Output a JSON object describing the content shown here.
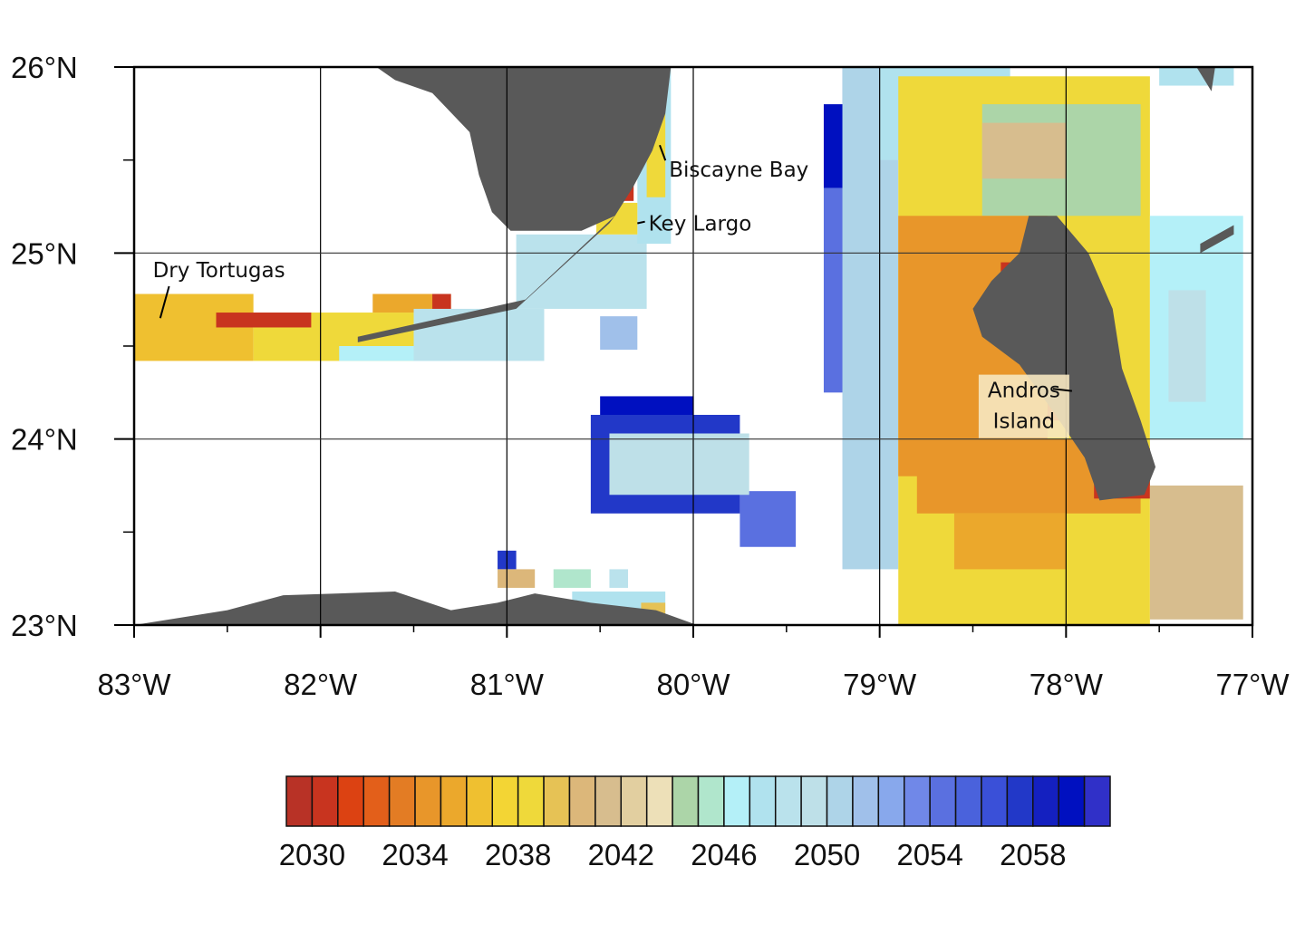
{
  "chart_data": {
    "type": "heatmap",
    "xlim": [
      -83,
      -77
    ],
    "ylim": [
      23,
      26
    ],
    "grid": true,
    "land_color": "#595959",
    "x_ticks": [
      {
        "v": -83,
        "label": "83°W"
      },
      {
        "v": -82,
        "label": "82°W"
      },
      {
        "v": -81,
        "label": "81°W"
      },
      {
        "v": -80,
        "label": "80°W"
      },
      {
        "v": -79,
        "label": "79°W"
      },
      {
        "v": -78,
        "label": "78°W"
      },
      {
        "v": -77,
        "label": "77°W"
      }
    ],
    "y_ticks": [
      {
        "v": 26,
        "label": "26°N"
      },
      {
        "v": 25,
        "label": "25°N"
      },
      {
        "v": 24,
        "label": "24°N"
      },
      {
        "v": 23,
        "label": "23°N"
      }
    ],
    "annotations": [
      {
        "text": "Dry Tortugas",
        "lon": -82.9,
        "lat": 24.87,
        "point": [
          -82.86,
          24.65
        ]
      },
      {
        "text": "Biscayne Bay",
        "lon": -80.13,
        "lat": 25.41,
        "point": [
          -80.18,
          25.58
        ]
      },
      {
        "text": "Key Largo",
        "lon": -80.24,
        "lat": 25.12,
        "point": [
          -80.3,
          25.16
        ]
      },
      {
        "text": "Andros Island",
        "lines": [
          "Andros",
          "Island"
        ],
        "lon": -78.43,
        "lat": 24.2,
        "point": [
          -78.07,
          24.27
        ]
      }
    ],
    "colorbar": {
      "start": 2029,
      "tick_labels": [
        "2030",
        "2034",
        "2038",
        "2042",
        "2046",
        "2050",
        "2054",
        "2058"
      ],
      "tick_values": [
        2030,
        2034,
        2038,
        2042,
        2046,
        2050,
        2054,
        2058
      ],
      "colors": [
        "#b83226",
        "#c8341f",
        "#dc4212",
        "#e35f1a",
        "#e37c24",
        "#e8962a",
        "#eba82c",
        "#efc030",
        "#f3d534",
        "#efd93a",
        "#e6c255",
        "#dcb77a",
        "#d7bd8e",
        "#e2cfa0",
        "#ede0b8",
        "#acd5a8",
        "#b0e6cc",
        "#b4f0f8",
        "#b0e2ee",
        "#bae2ec",
        "#bee0e8",
        "#aed4e8",
        "#a0c0ea",
        "#88a8ec",
        "#7088e8",
        "#5a70e0",
        "#4a62dc",
        "#3a50d8",
        "#2238c8",
        "#1420c0",
        "#0010c0",
        "#3030c8"
      ]
    },
    "patches": [
      {
        "lon": [
          -83.0,
          -82.36
        ],
        "lat": [
          24.42,
          24.78
        ],
        "year": 2036
      },
      {
        "lon": [
          -82.36,
          -81.5
        ],
        "lat": [
          24.42,
          24.68
        ],
        "year": 2038
      },
      {
        "lon": [
          -82.56,
          -82.05
        ],
        "lat": [
          24.6,
          24.68
        ],
        "year": 2030
      },
      {
        "lon": [
          -81.72,
          -81.3
        ],
        "lat": [
          24.68,
          24.78
        ],
        "year": 2035
      },
      {
        "lon": [
          -81.4,
          -81.3
        ],
        "lat": [
          24.68,
          24.78
        ],
        "year": 2030
      },
      {
        "lon": [
          -81.9,
          -81.3
        ],
        "lat": [
          24.42,
          24.5
        ],
        "year": 2046
      },
      {
        "lon": [
          -81.5,
          -80.8
        ],
        "lat": [
          24.42,
          24.7
        ],
        "year": 2048
      },
      {
        "lon": [
          -80.95,
          -80.25
        ],
        "lat": [
          24.7,
          25.1
        ],
        "year": 2048
      },
      {
        "lon": [
          -80.5,
          -80.3
        ],
        "lat": [
          24.48,
          24.66
        ],
        "year": 2051
      },
      {
        "lon": [
          -80.3,
          -80.12
        ],
        "lat": [
          25.05,
          26.0
        ],
        "year": 2047
      },
      {
        "lon": [
          -80.25,
          -80.15
        ],
        "lat": [
          25.3,
          25.75
        ],
        "year": 2038
      },
      {
        "lon": [
          -80.4,
          -80.32
        ],
        "lat": [
          25.28,
          25.38
        ],
        "year": 2030
      },
      {
        "lon": [
          -80.52,
          -80.3
        ],
        "lat": [
          25.1,
          25.27
        ],
        "year": 2038
      },
      {
        "lon": [
          -80.5,
          -80.0
        ],
        "lat": [
          24.12,
          24.23
        ],
        "year": 2059
      },
      {
        "lon": [
          -80.55,
          -79.75
        ],
        "lat": [
          23.6,
          24.13
        ],
        "year": 2057
      },
      {
        "lon": [
          -79.75,
          -79.45
        ],
        "lat": [
          23.42,
          23.72
        ],
        "year": 2054
      },
      {
        "lon": [
          -80.45,
          -79.7
        ],
        "lat": [
          23.7,
          24.03
        ],
        "year": 2049
      },
      {
        "lon": [
          -81.05,
          -80.95
        ],
        "lat": [
          23.3,
          23.4
        ],
        "year": 2057
      },
      {
        "lon": [
          -81.05,
          -80.85
        ],
        "lat": [
          23.2,
          23.3
        ],
        "year": 2040
      },
      {
        "lon": [
          -80.75,
          -80.55
        ],
        "lat": [
          23.2,
          23.3
        ],
        "year": 2045
      },
      {
        "lon": [
          -80.45,
          -80.35
        ],
        "lat": [
          23.2,
          23.3
        ],
        "year": 2048
      },
      {
        "lon": [
          -80.65,
          -80.15
        ],
        "lat": [
          23.05,
          23.18
        ],
        "year": 2047
      },
      {
        "lon": [
          -80.28,
          -80.15
        ],
        "lat": [
          23.0,
          23.12
        ],
        "year": 2039
      },
      {
        "lon": [
          -79.3,
          -79.2
        ],
        "lat": [
          25.35,
          25.8
        ],
        "year": 2059
      },
      {
        "lon": [
          -79.2,
          -79.1
        ],
        "lat": [
          25.1,
          26.0
        ],
        "year": 2059
      },
      {
        "lon": [
          -79.3,
          -79.1
        ],
        "lat": [
          24.25,
          25.35
        ],
        "year": 2054
      },
      {
        "lon": [
          -79.2,
          -78.9
        ],
        "lat": [
          23.3,
          26.0
        ],
        "year": 2050
      },
      {
        "lon": [
          -79.0,
          -78.3
        ],
        "lat": [
          25.5,
          26.0
        ],
        "year": 2047
      },
      {
        "lon": [
          -78.9,
          -77.55
        ],
        "lat": [
          23.0,
          25.95
        ],
        "year": 2038
      },
      {
        "lon": [
          -78.45,
          -77.6
        ],
        "lat": [
          25.2,
          25.8
        ],
        "year": 2044
      },
      {
        "lon": [
          -78.9,
          -78.1
        ],
        "lat": [
          23.8,
          25.2
        ],
        "year": 2034
      },
      {
        "lon": [
          -78.8,
          -77.6
        ],
        "lat": [
          23.6,
          24.0
        ],
        "year": 2034
      },
      {
        "lon": [
          -78.6,
          -78.0
        ],
        "lat": [
          23.3,
          23.6
        ],
        "year": 2035
      },
      {
        "lon": [
          -78.35,
          -78.05
        ],
        "lat": [
          24.5,
          24.95
        ],
        "year": 2030
      },
      {
        "lon": [
          -78.1,
          -77.75
        ],
        "lat": [
          24.1,
          24.4
        ],
        "year": 2030
      },
      {
        "lon": [
          -77.85,
          -77.55
        ],
        "lat": [
          23.68,
          23.95
        ],
        "year": 2030
      },
      {
        "lon": [
          -77.55,
          -77.05
        ],
        "lat": [
          23.03,
          23.75
        ],
        "year": 2041
      },
      {
        "lon": [
          -77.55,
          -77.05
        ],
        "lat": [
          24.0,
          25.2
        ],
        "year": 2046
      },
      {
        "lon": [
          -77.45,
          -77.25
        ],
        "lat": [
          24.2,
          24.8
        ],
        "year": 2049
      },
      {
        "lon": [
          -77.5,
          -77.1
        ],
        "lat": [
          25.9,
          26.0
        ],
        "year": 2047
      },
      {
        "lon": [
          -78.45,
          -78.0
        ],
        "lat": [
          25.4,
          25.7
        ],
        "year": 2041
      }
    ],
    "land": [
      {
        "name": "florida",
        "pts": [
          [
            -81.7,
            26
          ],
          [
            -80.12,
            26
          ],
          [
            -80.15,
            25.75
          ],
          [
            -80.22,
            25.55
          ],
          [
            -80.32,
            25.36
          ],
          [
            -80.42,
            25.2
          ],
          [
            -80.6,
            25.12
          ],
          [
            -80.98,
            25.12
          ],
          [
            -81.08,
            25.22
          ],
          [
            -81.15,
            25.42
          ],
          [
            -81.2,
            25.65
          ],
          [
            -81.4,
            25.86
          ],
          [
            -81.6,
            25.93
          ]
        ]
      },
      {
        "name": "florida-keys",
        "pts": [
          [
            -80.42,
            25.2
          ],
          [
            -80.9,
            24.75
          ],
          [
            -81.8,
            24.55
          ],
          [
            -81.8,
            24.52
          ],
          [
            -80.95,
            24.7
          ],
          [
            -80.45,
            25.16
          ]
        ]
      },
      {
        "name": "andros-island",
        "pts": [
          [
            -78.2,
            25.2
          ],
          [
            -78.05,
            25.2
          ],
          [
            -77.88,
            25.0
          ],
          [
            -77.75,
            24.7
          ],
          [
            -77.7,
            24.38
          ],
          [
            -77.6,
            24.1
          ],
          [
            -77.52,
            23.85
          ],
          [
            -77.58,
            23.7
          ],
          [
            -77.82,
            23.67
          ],
          [
            -77.9,
            23.9
          ],
          [
            -78.07,
            24.15
          ],
          [
            -78.25,
            24.4
          ],
          [
            -78.45,
            24.55
          ],
          [
            -78.5,
            24.7
          ],
          [
            -78.4,
            24.85
          ],
          [
            -78.25,
            25.0
          ]
        ]
      },
      {
        "name": "cuba",
        "pts": [
          [
            -83.0,
            23.0
          ],
          [
            -82.5,
            23.08
          ],
          [
            -82.2,
            23.16
          ],
          [
            -81.6,
            23.18
          ],
          [
            -81.3,
            23.08
          ],
          [
            -81.05,
            23.12
          ],
          [
            -80.85,
            23.17
          ],
          [
            -80.55,
            23.12
          ],
          [
            -80.2,
            23.08
          ],
          [
            -79.98,
            23.0
          ]
        ]
      },
      {
        "name": "grand-bahama",
        "pts": [
          [
            -77.3,
            26
          ],
          [
            -77.2,
            26
          ],
          [
            -77.22,
            25.87
          ]
        ]
      },
      {
        "name": "eleuthera",
        "pts": [
          [
            -77.28,
            25.05
          ],
          [
            -77.1,
            25.15
          ],
          [
            -77.1,
            25.1
          ],
          [
            -77.28,
            25.0
          ]
        ]
      }
    ]
  }
}
